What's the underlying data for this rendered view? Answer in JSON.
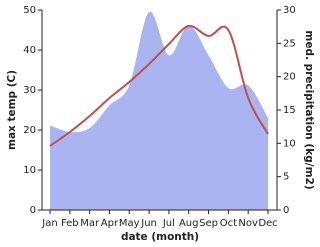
{
  "chart_data": {
    "type": "line-area",
    "xlabel": "date (month)",
    "ylabel": "max temp (C)",
    "y2label": "med. precipitation (kg/m2)",
    "categories": [
      "Jan",
      "Feb",
      "Mar",
      "Apr",
      "May",
      "Jun",
      "Jul",
      "Aug",
      "Sep",
      "Oct",
      "Nov",
      "Dec"
    ],
    "series": [
      {
        "color": "#aab4f0",
        "axis": "y2",
        "values": [
          12.7,
          11.7,
          12.3,
          15.7,
          18.7,
          29.7,
          23.2,
          27.7,
          23.2,
          18.3,
          18.7,
          13.8
        ]
      },
      {
        "color": "#c0504d",
        "values": [
          16,
          19.5,
          23.5,
          28,
          32,
          36.5,
          41.5,
          46,
          43.5,
          45,
          28,
          19
        ]
      }
    ],
    "ylim": [
      0,
      50
    ],
    "yticks": [
      0,
      10,
      20,
      30,
      40,
      50
    ],
    "y2lim": [
      0,
      30
    ],
    "y2ticks": [
      0,
      5,
      10,
      15,
      20,
      25,
      30
    ]
  }
}
